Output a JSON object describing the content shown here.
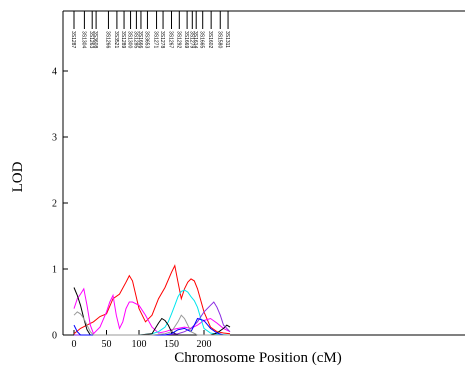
{
  "chart_data": {
    "type": "line",
    "title": "",
    "xlabel": "Chromosome Position (cM)",
    "ylabel": "LOD",
    "xlim": [
      0,
      240
    ],
    "ylim": [
      0,
      4.8
    ],
    "x_ticks": [
      "0",
      "50",
      "100",
      "150",
      "200"
    ],
    "y_ticks": [
      "0",
      "1",
      "2",
      "3",
      "4"
    ],
    "grid": false,
    "markers": [
      {
        "name": "3S1287",
        "pos": 0
      },
      {
        "name": "3S1304",
        "pos": 16
      },
      {
        "name": "3S1263",
        "pos": 28
      },
      {
        "name": "3S3608",
        "pos": 34
      },
      {
        "name": "3S1266",
        "pos": 53
      },
      {
        "name": "3S3521",
        "pos": 66
      },
      {
        "name": "3S1289",
        "pos": 77
      },
      {
        "name": "3S1300",
        "pos": 87
      },
      {
        "name": "3S1285",
        "pos": 96
      },
      {
        "name": "3S1666",
        "pos": 103
      },
      {
        "name": "3S3653",
        "pos": 113
      },
      {
        "name": "3S1271",
        "pos": 127
      },
      {
        "name": "3S1278",
        "pos": 137
      },
      {
        "name": "3S1267",
        "pos": 150
      },
      {
        "name": "3S1292",
        "pos": 162
      },
      {
        "name": "3S1669",
        "pos": 174
      },
      {
        "name": "3S1279",
        "pos": 182
      },
      {
        "name": "3S1614",
        "pos": 188
      },
      {
        "name": "3S1665",
        "pos": 198
      },
      {
        "name": "3S1602",
        "pos": 211
      },
      {
        "name": "3S1580",
        "pos": 225
      },
      {
        "name": "3S1311",
        "pos": 237
      }
    ],
    "series": [
      {
        "color": "#ff0000",
        "x": [
          0,
          10,
          20,
          30,
          40,
          50,
          60,
          70,
          80,
          85,
          90,
          100,
          110,
          120,
          130,
          140,
          150,
          155,
          160,
          165,
          170,
          175,
          180,
          185,
          190,
          200,
          210,
          220,
          230,
          240
        ],
        "y": [
          0.02,
          0.1,
          0.15,
          0.2,
          0.28,
          0.32,
          0.55,
          0.62,
          0.8,
          0.9,
          0.82,
          0.4,
          0.2,
          0.3,
          0.55,
          0.72,
          0.95,
          1.05,
          0.8,
          0.55,
          0.7,
          0.8,
          0.85,
          0.82,
          0.7,
          0.35,
          0.12,
          0.05,
          0.03,
          0.02
        ]
      },
      {
        "color": "#ff00ff",
        "x": [
          0,
          5,
          10,
          15,
          20,
          25,
          30,
          40,
          50,
          55,
          60,
          65,
          70,
          75,
          80,
          85,
          90,
          100,
          110,
          120,
          130,
          140,
          150,
          160,
          170,
          180,
          190,
          200,
          210,
          220,
          230,
          240
        ],
        "y": [
          0.4,
          0.55,
          0.62,
          0.7,
          0.45,
          0.15,
          0.02,
          0.12,
          0.35,
          0.5,
          0.6,
          0.3,
          0.1,
          0.2,
          0.4,
          0.5,
          0.5,
          0.45,
          0.3,
          0.12,
          0.03,
          0.05,
          0.08,
          0.1,
          0.12,
          0.1,
          0.15,
          0.22,
          0.25,
          0.18,
          0.1,
          0.05
        ]
      },
      {
        "color": "#00e5ee",
        "x": [
          0,
          10,
          20,
          40,
          60,
          80,
          100,
          120,
          130,
          140,
          145,
          150,
          155,
          160,
          165,
          170,
          175,
          180,
          185,
          190,
          195,
          200,
          210,
          220,
          240
        ],
        "y": [
          0.0,
          0.0,
          0.0,
          0.0,
          0.0,
          0.0,
          0.0,
          0.02,
          0.05,
          0.12,
          0.2,
          0.32,
          0.45,
          0.58,
          0.66,
          0.68,
          0.65,
          0.58,
          0.52,
          0.42,
          0.25,
          0.1,
          0.03,
          0.01,
          0.0
        ]
      },
      {
        "color": "#000000",
        "x": [
          0,
          5,
          10,
          15,
          20,
          25,
          30,
          40,
          60,
          80,
          100,
          120,
          130,
          135,
          140,
          145,
          150,
          160,
          180,
          200,
          210,
          220,
          230,
          235,
          240
        ],
        "y": [
          0.72,
          0.6,
          0.45,
          0.25,
          0.08,
          0.0,
          0.0,
          0.0,
          0.0,
          0.0,
          0.0,
          0.02,
          0.18,
          0.25,
          0.22,
          0.15,
          0.05,
          0.0,
          0.0,
          0.0,
          0.0,
          0.03,
          0.1,
          0.15,
          0.12
        ]
      },
      {
        "color": "#8a2be2",
        "x": [
          0,
          20,
          40,
          60,
          80,
          100,
          120,
          140,
          160,
          170,
          180,
          190,
          200,
          210,
          215,
          220,
          225,
          230,
          240
        ],
        "y": [
          0.0,
          0.0,
          0.0,
          0.0,
          0.0,
          0.0,
          0.0,
          0.0,
          0.02,
          0.05,
          0.1,
          0.2,
          0.35,
          0.45,
          0.5,
          0.42,
          0.3,
          0.15,
          0.05
        ]
      },
      {
        "color": "#0000ff",
        "x": [
          0,
          5,
          10,
          20,
          40,
          60,
          80,
          100,
          120,
          140,
          150,
          160,
          170,
          180,
          185,
          190,
          200,
          210,
          220,
          230,
          240
        ],
        "y": [
          0.15,
          0.05,
          0.0,
          0.0,
          0.0,
          0.0,
          0.0,
          0.0,
          0.0,
          0.0,
          0.02,
          0.08,
          0.1,
          0.05,
          0.15,
          0.25,
          0.22,
          0.1,
          0.03,
          0.0,
          0.0
        ]
      },
      {
        "color": "#999999",
        "x": [
          0,
          5,
          10,
          15,
          20,
          25,
          30,
          40,
          60,
          80,
          100,
          120,
          140,
          150,
          160,
          165,
          170,
          175,
          180,
          190,
          200,
          220,
          240
        ],
        "y": [
          0.3,
          0.35,
          0.32,
          0.25,
          0.15,
          0.05,
          0.0,
          0.0,
          0.0,
          0.0,
          0.0,
          0.0,
          0.02,
          0.05,
          0.2,
          0.3,
          0.25,
          0.15,
          0.05,
          0.0,
          0.0,
          0.0,
          0.0
        ]
      }
    ]
  }
}
